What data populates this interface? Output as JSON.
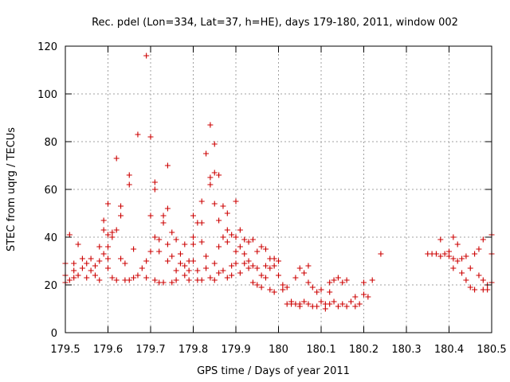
{
  "chart_data": {
    "type": "scatter",
    "title": "Rec. pdel (Lon=334, Lat=37, h=HE), days 179-180, 2011, window 002",
    "xlabel": "GPS time / Days of year 2011",
    "ylabel": "STEC from uqrg / TECUs",
    "xlim": [
      179.5,
      180.5
    ],
    "ylim": [
      0,
      120
    ],
    "xticks": [
      179.5,
      179.6,
      179.7,
      179.8,
      179.9,
      180.0,
      180.1,
      180.2,
      180.3,
      180.4,
      180.5
    ],
    "xtick_labels": [
      "179.5",
      "179.6",
      "179.7",
      "179.8",
      "179.9",
      "180",
      "180.1",
      "180.2",
      "180.3",
      "180.4",
      "180.5"
    ],
    "yticks": [
      0,
      20,
      40,
      60,
      80,
      100,
      120
    ],
    "ytick_labels": [
      "0",
      "20",
      "40",
      "60",
      "80",
      "100",
      "120"
    ],
    "grid": true,
    "marker": "plus",
    "marker_color": "#cc0000",
    "points": [
      [
        179.5,
        21
      ],
      [
        179.5,
        24
      ],
      [
        179.5,
        29
      ],
      [
        179.51,
        41
      ],
      [
        179.51,
        22
      ],
      [
        179.52,
        26
      ],
      [
        179.52,
        29
      ],
      [
        179.52,
        23
      ],
      [
        179.53,
        37
      ],
      [
        179.53,
        24
      ],
      [
        179.54,
        27
      ],
      [
        179.54,
        31
      ],
      [
        179.55,
        23
      ],
      [
        179.55,
        29
      ],
      [
        179.56,
        26
      ],
      [
        179.56,
        31
      ],
      [
        179.57,
        28
      ],
      [
        179.57,
        24
      ],
      [
        179.58,
        36
      ],
      [
        179.58,
        30
      ],
      [
        179.58,
        22
      ],
      [
        179.59,
        47
      ],
      [
        179.59,
        43
      ],
      [
        179.59,
        33
      ],
      [
        179.6,
        54
      ],
      [
        179.6,
        41
      ],
      [
        179.6,
        36
      ],
      [
        179.6,
        31
      ],
      [
        179.6,
        27
      ],
      [
        179.61,
        23
      ],
      [
        179.61,
        42
      ],
      [
        179.61,
        40
      ],
      [
        179.62,
        73
      ],
      [
        179.62,
        43
      ],
      [
        179.62,
        22
      ],
      [
        179.63,
        53
      ],
      [
        179.63,
        49
      ],
      [
        179.63,
        31
      ],
      [
        179.64,
        22
      ],
      [
        179.64,
        29
      ],
      [
        179.65,
        66
      ],
      [
        179.65,
        62
      ],
      [
        179.65,
        22
      ],
      [
        179.66,
        23
      ],
      [
        179.66,
        35
      ],
      [
        179.67,
        83
      ],
      [
        179.67,
        24
      ],
      [
        179.68,
        27
      ],
      [
        179.69,
        116
      ],
      [
        179.69,
        30
      ],
      [
        179.69,
        23
      ],
      [
        179.7,
        82
      ],
      [
        179.7,
        49
      ],
      [
        179.7,
        34
      ],
      [
        179.71,
        22
      ],
      [
        179.71,
        63
      ],
      [
        179.71,
        60
      ],
      [
        179.71,
        40
      ],
      [
        179.72,
        21
      ],
      [
        179.72,
        39
      ],
      [
        179.72,
        34
      ],
      [
        179.73,
        49
      ],
      [
        179.73,
        46
      ],
      [
        179.73,
        21
      ],
      [
        179.74,
        70
      ],
      [
        179.74,
        52
      ],
      [
        179.74,
        37
      ],
      [
        179.74,
        30
      ],
      [
        179.75,
        42
      ],
      [
        179.75,
        32
      ],
      [
        179.75,
        21
      ],
      [
        179.76,
        39
      ],
      [
        179.76,
        26
      ],
      [
        179.76,
        22
      ],
      [
        179.77,
        33
      ],
      [
        179.77,
        29
      ],
      [
        179.78,
        37
      ],
      [
        179.78,
        28
      ],
      [
        179.78,
        24
      ],
      [
        179.79,
        30
      ],
      [
        179.79,
        26
      ],
      [
        179.79,
        22
      ],
      [
        179.8,
        40
      ],
      [
        179.8,
        49
      ],
      [
        179.8,
        37
      ],
      [
        179.8,
        30
      ],
      [
        179.81,
        26
      ],
      [
        179.81,
        22
      ],
      [
        179.81,
        46
      ],
      [
        179.82,
        55
      ],
      [
        179.82,
        46
      ],
      [
        179.82,
        38
      ],
      [
        179.82,
        22
      ],
      [
        179.83,
        75
      ],
      [
        179.83,
        32
      ],
      [
        179.83,
        27
      ],
      [
        179.84,
        87
      ],
      [
        179.84,
        65
      ],
      [
        179.84,
        62
      ],
      [
        179.84,
        23
      ],
      [
        179.85,
        79
      ],
      [
        179.85,
        67
      ],
      [
        179.85,
        54
      ],
      [
        179.85,
        29
      ],
      [
        179.85,
        22
      ],
      [
        179.86,
        66
      ],
      [
        179.86,
        47
      ],
      [
        179.86,
        36
      ],
      [
        179.86,
        25
      ],
      [
        179.87,
        53
      ],
      [
        179.87,
        40
      ],
      [
        179.87,
        26
      ],
      [
        179.88,
        50
      ],
      [
        179.88,
        43
      ],
      [
        179.88,
        38
      ],
      [
        179.88,
        23
      ],
      [
        179.89,
        41
      ],
      [
        179.89,
        28
      ],
      [
        179.89,
        24
      ],
      [
        179.9,
        55
      ],
      [
        179.9,
        40
      ],
      [
        179.9,
        34
      ],
      [
        179.9,
        29
      ],
      [
        179.91,
        43
      ],
      [
        179.91,
        36
      ],
      [
        179.91,
        25
      ],
      [
        179.92,
        39
      ],
      [
        179.92,
        33
      ],
      [
        179.92,
        29
      ],
      [
        179.93,
        38
      ],
      [
        179.93,
        30
      ],
      [
        179.93,
        27
      ],
      [
        179.94,
        39
      ],
      [
        179.94,
        28
      ],
      [
        179.94,
        21
      ],
      [
        179.95,
        34
      ],
      [
        179.95,
        27
      ],
      [
        179.95,
        20
      ],
      [
        179.96,
        36
      ],
      [
        179.96,
        24
      ],
      [
        179.96,
        19
      ],
      [
        179.97,
        35
      ],
      [
        179.97,
        28
      ],
      [
        179.97,
        23
      ],
      [
        179.98,
        31
      ],
      [
        179.98,
        27
      ],
      [
        179.98,
        18
      ],
      [
        179.99,
        31
      ],
      [
        179.99,
        28
      ],
      [
        179.99,
        17
      ],
      [
        180.0,
        30
      ],
      [
        180.0,
        24
      ],
      [
        180.01,
        20
      ],
      [
        180.01,
        18
      ],
      [
        180.02,
        12
      ],
      [
        180.02,
        19
      ],
      [
        180.03,
        13
      ],
      [
        180.03,
        12
      ],
      [
        180.04,
        23
      ],
      [
        180.04,
        12
      ],
      [
        180.05,
        27
      ],
      [
        180.05,
        12
      ],
      [
        180.05,
        11
      ],
      [
        180.06,
        25
      ],
      [
        180.06,
        13
      ],
      [
        180.07,
        28
      ],
      [
        180.07,
        21
      ],
      [
        180.07,
        12
      ],
      [
        180.08,
        19
      ],
      [
        180.08,
        11
      ],
      [
        180.09,
        17
      ],
      [
        180.09,
        11
      ],
      [
        180.1,
        13
      ],
      [
        180.1,
        18
      ],
      [
        180.11,
        12
      ],
      [
        180.11,
        10
      ],
      [
        180.12,
        21
      ],
      [
        180.12,
        17
      ],
      [
        180.12,
        12
      ],
      [
        180.13,
        22
      ],
      [
        180.13,
        13
      ],
      [
        180.14,
        23
      ],
      [
        180.14,
        11
      ],
      [
        180.15,
        21
      ],
      [
        180.15,
        12
      ],
      [
        180.16,
        22
      ],
      [
        180.16,
        11
      ],
      [
        180.17,
        13
      ],
      [
        180.18,
        15
      ],
      [
        180.18,
        11
      ],
      [
        180.19,
        12
      ],
      [
        180.2,
        16
      ],
      [
        180.2,
        21
      ],
      [
        180.21,
        15
      ],
      [
        180.22,
        22
      ],
      [
        180.24,
        33
      ],
      [
        180.35,
        33
      ],
      [
        180.36,
        33
      ],
      [
        180.37,
        33
      ],
      [
        180.38,
        32
      ],
      [
        180.38,
        39
      ],
      [
        180.39,
        33
      ],
      [
        180.4,
        34
      ],
      [
        180.4,
        32
      ],
      [
        180.41,
        40
      ],
      [
        180.41,
        31
      ],
      [
        180.41,
        27
      ],
      [
        180.42,
        30
      ],
      [
        180.42,
        37
      ],
      [
        180.43,
        25
      ],
      [
        180.43,
        31
      ],
      [
        180.44,
        22
      ],
      [
        180.44,
        32
      ],
      [
        180.45,
        19
      ],
      [
        180.45,
        27
      ],
      [
        180.46,
        33
      ],
      [
        180.46,
        18
      ],
      [
        180.47,
        24
      ],
      [
        180.47,
        35
      ],
      [
        180.48,
        18
      ],
      [
        180.48,
        39
      ],
      [
        180.48,
        22
      ],
      [
        180.49,
        20
      ],
      [
        180.49,
        18
      ],
      [
        180.5,
        41
      ],
      [
        180.5,
        33
      ],
      [
        180.5,
        21
      ]
    ]
  }
}
